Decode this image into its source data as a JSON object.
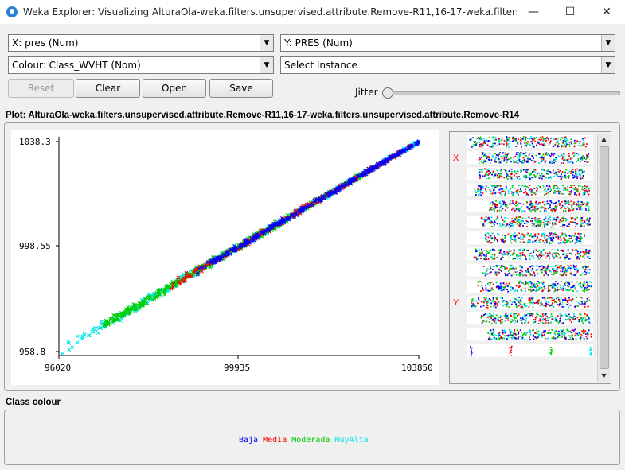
{
  "window": {
    "title": "Weka Explorer: Visualizing AlturaOla-weka.filters.unsupervised.attribute.Remove-R11,16-17-weka.filters.unsupervise...",
    "minimize": "—",
    "maximize": "☐",
    "close": "✕"
  },
  "controls": {
    "x_axis": "X: pres (Num)",
    "y_axis": "Y: PRES (Num)",
    "colour": "Colour: Class_WVHT (Nom)",
    "select_instance": "Select Instance",
    "reset": "Reset",
    "clear": "Clear",
    "open": "Open",
    "save": "Save",
    "jitter_label": "Jitter",
    "jitter_value": 0
  },
  "plot": {
    "label": "Plot: AlturaOla-weka.filters.unsupervised.attribute.Remove-R11,16-17-weka.filters.unsupervised.attribute.Remove-R14"
  },
  "chart_data": {
    "type": "scatter",
    "marker": "x",
    "x_ticks": [
      "96020",
      "99935",
      "103850"
    ],
    "y_ticks": [
      "1038.3",
      "998.55",
      "958.8"
    ],
    "xlim": [
      96020,
      103850
    ],
    "ylim": [
      958.8,
      1038.3
    ],
    "trend": {
      "slope": 0.01015,
      "intercept_at_xmin": 958.8
    },
    "series": [
      {
        "name": "Baja",
        "color": "#0000ff",
        "x_range": [
          99000,
          103850
        ]
      },
      {
        "name": "Media",
        "color": "#ff0000",
        "x_range": [
          98400,
          103700
        ]
      },
      {
        "name": "Moderada",
        "color": "#00cc00",
        "x_range": [
          97000,
          102800
        ]
      },
      {
        "name": "MuyAlta",
        "color": "#00e5e5",
        "x_range": [
          96020,
          103850
        ]
      }
    ]
  },
  "attribute_panel": {
    "x_marker": "X",
    "y_marker": "Y",
    "x_row": 1,
    "y_row": 10,
    "row_count": 14
  },
  "class_colour": {
    "label": "Class colour",
    "items": [
      {
        "name": "Baja",
        "color": "#0000ff"
      },
      {
        "name": "Media",
        "color": "#ff0000"
      },
      {
        "name": "Moderada",
        "color": "#00cc00"
      },
      {
        "name": "MuyAlta",
        "color": "#00e5e5"
      }
    ]
  }
}
